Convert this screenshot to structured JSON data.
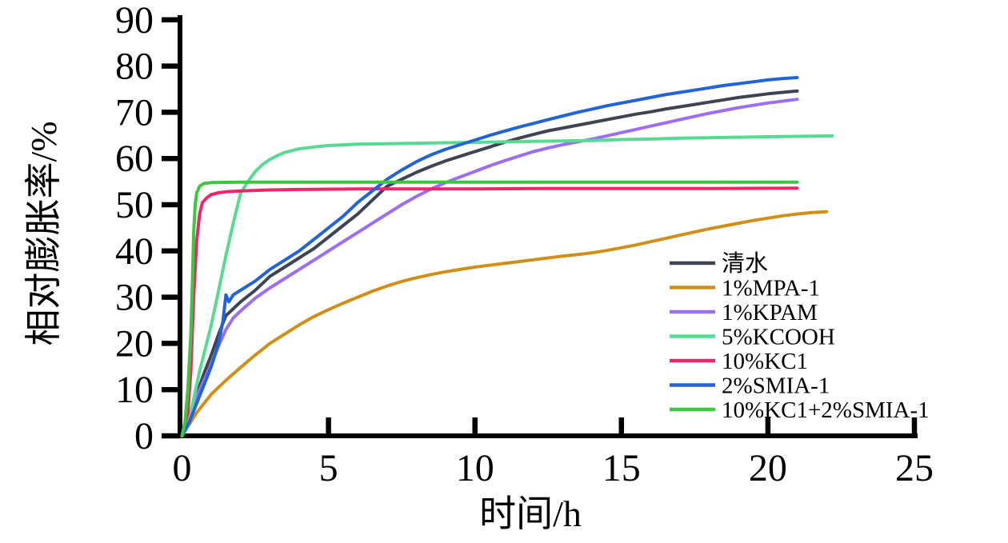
{
  "figure": {
    "background": "#ffffff",
    "description": "Line chart of relative swelling ratio versus time for different inhibitor fluids"
  },
  "chart_data": {
    "type": "line",
    "title": "",
    "xlabel": "时间/h",
    "ylabel": "相对膨胀率/%",
    "xlim": [
      0,
      25
    ],
    "ylim": [
      0,
      90
    ],
    "xticks": [
      0,
      5,
      10,
      15,
      20,
      25
    ],
    "yticks": [
      0,
      10,
      20,
      30,
      40,
      50,
      60,
      70,
      80,
      90
    ],
    "grid": false,
    "legend_position": "inside-right",
    "axis_color": "#000000",
    "series": [
      {
        "name": "清水",
        "color": "#3d4554",
        "points": [
          [
            0,
            0
          ],
          [
            0.25,
            4
          ],
          [
            0.5,
            9
          ],
          [
            0.75,
            13.5
          ],
          [
            1,
            17.5
          ],
          [
            1.25,
            22
          ],
          [
            1.5,
            26
          ],
          [
            1.75,
            27.5
          ],
          [
            2,
            29
          ],
          [
            2.5,
            31.5
          ],
          [
            3,
            34.5
          ],
          [
            3.5,
            36.5
          ],
          [
            4,
            38.5
          ],
          [
            4.5,
            40.5
          ],
          [
            5,
            43
          ],
          [
            5.5,
            45.5
          ],
          [
            6,
            48
          ],
          [
            6.5,
            51
          ],
          [
            7,
            54
          ],
          [
            7.5,
            55.5
          ],
          [
            8,
            57
          ],
          [
            8.5,
            58.3
          ],
          [
            9,
            59.5
          ],
          [
            9.5,
            60.5
          ],
          [
            10,
            61.5
          ],
          [
            10.5,
            62.5
          ],
          [
            11,
            63.5
          ],
          [
            11.5,
            64.4
          ],
          [
            12,
            65.2
          ],
          [
            12.5,
            66
          ],
          [
            13,
            66.6
          ],
          [
            13.5,
            67.2
          ],
          [
            14,
            67.8
          ],
          [
            14.5,
            68.4
          ],
          [
            15,
            69
          ],
          [
            15.5,
            69.6
          ],
          [
            16,
            70.1
          ],
          [
            16.5,
            70.7
          ],
          [
            17,
            71.2
          ],
          [
            17.5,
            71.7
          ],
          [
            18,
            72.2
          ],
          [
            18.5,
            72.7
          ],
          [
            19,
            73.2
          ],
          [
            19.5,
            73.6
          ],
          [
            20,
            74
          ],
          [
            20.5,
            74.3
          ],
          [
            21,
            74.6
          ]
        ]
      },
      {
        "name": "1%MPA-1",
        "color": "#d09018",
        "points": [
          [
            0,
            0
          ],
          [
            0.25,
            2.5
          ],
          [
            0.5,
            5
          ],
          [
            0.75,
            7
          ],
          [
            1,
            9
          ],
          [
            1.5,
            12
          ],
          [
            2,
            14.8
          ],
          [
            2.5,
            17.5
          ],
          [
            3,
            20
          ],
          [
            3.5,
            22
          ],
          [
            4,
            24
          ],
          [
            4.5,
            25.8
          ],
          [
            5,
            27.3
          ],
          [
            5.5,
            28.7
          ],
          [
            6,
            30
          ],
          [
            6.5,
            31.3
          ],
          [
            7,
            32.4
          ],
          [
            7.5,
            33.4
          ],
          [
            8,
            34.2
          ],
          [
            8.5,
            34.9
          ],
          [
            9,
            35.5
          ],
          [
            9.5,
            36
          ],
          [
            10,
            36.5
          ],
          [
            10.5,
            36.9
          ],
          [
            11,
            37.3
          ],
          [
            11.5,
            37.7
          ],
          [
            12,
            38.1
          ],
          [
            12.5,
            38.5
          ],
          [
            13,
            38.9
          ],
          [
            13.5,
            39.2
          ],
          [
            14,
            39.6
          ],
          [
            14.5,
            40.1
          ],
          [
            15,
            40.7
          ],
          [
            15.5,
            41.3
          ],
          [
            16,
            42
          ],
          [
            16.5,
            42.7
          ],
          [
            17,
            43.4
          ],
          [
            17.5,
            44.1
          ],
          [
            18,
            44.8
          ],
          [
            18.5,
            45.4
          ],
          [
            19,
            46
          ],
          [
            19.5,
            46.6
          ],
          [
            20,
            47.1
          ],
          [
            20.5,
            47.6
          ],
          [
            21,
            48
          ],
          [
            21.5,
            48.3
          ],
          [
            22,
            48.5
          ]
        ]
      },
      {
        "name": "1%KPAM",
        "color": "#9b6ef2",
        "points": [
          [
            0,
            0
          ],
          [
            0.25,
            4.5
          ],
          [
            0.5,
            8.5
          ],
          [
            0.75,
            12
          ],
          [
            1,
            15.5
          ],
          [
            1.25,
            19.5
          ],
          [
            1.5,
            23
          ],
          [
            1.75,
            25.5
          ],
          [
            2,
            27
          ],
          [
            2.5,
            29.8
          ],
          [
            3,
            32
          ],
          [
            3.5,
            34
          ],
          [
            4,
            36
          ],
          [
            4.5,
            38
          ],
          [
            5,
            40
          ],
          [
            5.5,
            42
          ],
          [
            6,
            44
          ],
          [
            6.5,
            46
          ],
          [
            7,
            48
          ],
          [
            7.5,
            50
          ],
          [
            8,
            51.8
          ],
          [
            8.5,
            53.4
          ],
          [
            9,
            54.8
          ],
          [
            9.5,
            56
          ],
          [
            10,
            57.2
          ],
          [
            10.5,
            58.4
          ],
          [
            11,
            59.5
          ],
          [
            11.5,
            60.5
          ],
          [
            12,
            61.5
          ],
          [
            12.5,
            62.3
          ],
          [
            13,
            63
          ],
          [
            13.5,
            63.6
          ],
          [
            14,
            64.2
          ],
          [
            14.5,
            64.9
          ],
          [
            15,
            65.6
          ],
          [
            15.5,
            66.3
          ],
          [
            16,
            67
          ],
          [
            16.5,
            67.7
          ],
          [
            17,
            68.4
          ],
          [
            17.5,
            69.1
          ],
          [
            18,
            69.8
          ],
          [
            18.5,
            70.4
          ],
          [
            19,
            71
          ],
          [
            19.5,
            71.5
          ],
          [
            20,
            72
          ],
          [
            20.5,
            72.4
          ],
          [
            21,
            72.8
          ]
        ]
      },
      {
        "name": "5%KCOOH",
        "color": "#57db92",
        "points": [
          [
            0,
            0
          ],
          [
            0.2,
            2
          ],
          [
            0.4,
            8
          ],
          [
            0.6,
            14
          ],
          [
            0.8,
            19
          ],
          [
            1,
            24
          ],
          [
            1.25,
            31.5
          ],
          [
            1.5,
            39
          ],
          [
            1.75,
            46
          ],
          [
            2,
            52.5
          ],
          [
            2.25,
            55
          ],
          [
            2.5,
            57.2
          ],
          [
            2.75,
            58.7
          ],
          [
            3,
            59.8
          ],
          [
            3.25,
            60.6
          ],
          [
            3.5,
            61.3
          ],
          [
            4,
            62.1
          ],
          [
            4.5,
            62.5
          ],
          [
            5,
            62.8
          ],
          [
            6,
            63.1
          ],
          [
            7,
            63.2
          ],
          [
            8,
            63.3
          ],
          [
            9,
            63.4
          ],
          [
            10,
            63.5
          ],
          [
            11,
            63.6
          ],
          [
            12,
            63.7
          ],
          [
            13,
            63.8
          ],
          [
            14,
            63.9
          ],
          [
            15,
            64.1
          ],
          [
            16,
            64.2
          ],
          [
            17,
            64.4
          ],
          [
            18,
            64.5
          ],
          [
            19,
            64.6
          ],
          [
            20,
            64.7
          ],
          [
            21,
            64.8
          ],
          [
            22.2,
            64.9
          ]
        ]
      },
      {
        "name": "10%KC1",
        "color": "#f0256b",
        "points": [
          [
            0,
            0
          ],
          [
            0.2,
            5
          ],
          [
            0.3,
            14
          ],
          [
            0.4,
            30
          ],
          [
            0.5,
            42
          ],
          [
            0.6,
            48
          ],
          [
            0.7,
            50.5
          ],
          [
            0.85,
            51.5
          ],
          [
            1,
            52.2
          ],
          [
            1.25,
            52.6
          ],
          [
            1.5,
            52.8
          ],
          [
            2,
            53
          ],
          [
            3,
            53.2
          ],
          [
            4,
            53.3
          ],
          [
            6,
            53.4
          ],
          [
            8,
            53.4
          ],
          [
            10,
            53.4
          ],
          [
            12,
            53.5
          ],
          [
            15,
            53.5
          ],
          [
            18,
            53.5
          ],
          [
            21,
            53.6
          ]
        ]
      },
      {
        "name": "2%SMIA-1",
        "color": "#2264d8",
        "points": [
          [
            0,
            0
          ],
          [
            0.25,
            3
          ],
          [
            0.5,
            7
          ],
          [
            0.75,
            11
          ],
          [
            1,
            15
          ],
          [
            1.25,
            20
          ],
          [
            1.4,
            25
          ],
          [
            1.5,
            30.5
          ],
          [
            1.6,
            29
          ],
          [
            1.75,
            30.5
          ],
          [
            2,
            31.5
          ],
          [
            2.5,
            33.5
          ],
          [
            3,
            36
          ],
          [
            3.5,
            38
          ],
          [
            4,
            40
          ],
          [
            4.5,
            42.5
          ],
          [
            5,
            45
          ],
          [
            5.5,
            47.5
          ],
          [
            6,
            50.5
          ],
          [
            6.5,
            53
          ],
          [
            7,
            55.5
          ],
          [
            7.5,
            57.5
          ],
          [
            8,
            59.3
          ],
          [
            8.5,
            60.8
          ],
          [
            9,
            62
          ],
          [
            9.5,
            63
          ],
          [
            10,
            64
          ],
          [
            10.5,
            65
          ],
          [
            11,
            65.9
          ],
          [
            11.5,
            66.8
          ],
          [
            12,
            67.6
          ],
          [
            12.5,
            68.4
          ],
          [
            13,
            69.2
          ],
          [
            13.5,
            70
          ],
          [
            14,
            70.7
          ],
          [
            14.5,
            71.4
          ],
          [
            15,
            72
          ],
          [
            15.5,
            72.6
          ],
          [
            16,
            73.2
          ],
          [
            16.5,
            73.8
          ],
          [
            17,
            74.3
          ],
          [
            17.5,
            74.8
          ],
          [
            18,
            75.3
          ],
          [
            18.5,
            75.8
          ],
          [
            19,
            76.2
          ],
          [
            19.5,
            76.6
          ],
          [
            20,
            77
          ],
          [
            20.5,
            77.3
          ],
          [
            21,
            77.5
          ]
        ]
      },
      {
        "name": "10%KC1+2%SMIA-1",
        "color": "#3cc83e",
        "points": [
          [
            0,
            0
          ],
          [
            0.1,
            3
          ],
          [
            0.2,
            10
          ],
          [
            0.3,
            22
          ],
          [
            0.35,
            32
          ],
          [
            0.4,
            44
          ],
          [
            0.45,
            50
          ],
          [
            0.5,
            52.5
          ],
          [
            0.6,
            54
          ],
          [
            0.75,
            54.6
          ],
          [
            1,
            54.8
          ],
          [
            2,
            54.9
          ],
          [
            4,
            54.9
          ],
          [
            8,
            54.9
          ],
          [
            12,
            54.9
          ],
          [
            16,
            54.9
          ],
          [
            21,
            54.9
          ]
        ]
      }
    ]
  }
}
